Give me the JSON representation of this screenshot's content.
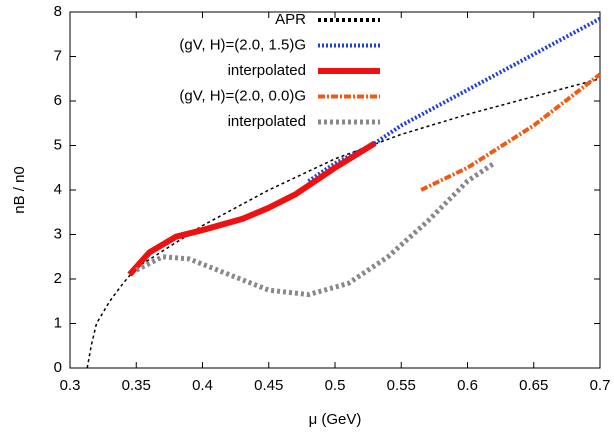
{
  "chart_data": {
    "type": "line",
    "xlabel": "μ (GeV)",
    "ylabel": "nB / n0",
    "xlim": [
      0.3,
      0.7
    ],
    "xticks": [
      0.3,
      0.35,
      0.4,
      0.45,
      0.5,
      0.55,
      0.6,
      0.65,
      0.7
    ],
    "ylim": [
      0,
      8
    ],
    "yticks": [
      0,
      1,
      2,
      3,
      4,
      5,
      6,
      7,
      8
    ],
    "legend": "top-right",
    "series": [
      {
        "name": "APR",
        "color": "#000000",
        "linestyle": "dashed",
        "x": [
          0.313,
          0.316,
          0.32,
          0.33,
          0.34,
          0.35,
          0.4,
          0.45,
          0.5,
          0.55,
          0.6,
          0.65,
          0.7
        ],
        "values": [
          0,
          0.5,
          1,
          1.5,
          1.9,
          2.25,
          3.2,
          4.0,
          4.7,
          5.25,
          5.7,
          6.1,
          6.5
        ]
      },
      {
        "name": "(gV, H)=(2.0, 1.5)G",
        "color": "#1f3fd6",
        "linestyle": "dotted",
        "x": [
          0.48,
          0.5,
          0.53,
          0.55,
          0.6,
          0.65,
          0.7
        ],
        "values": [
          4.2,
          4.6,
          5.05,
          5.45,
          6.25,
          7.05,
          7.85
        ]
      },
      {
        "name": "interpolated",
        "color": "#ee1111",
        "linestyle": "solid",
        "x": [
          0.345,
          0.36,
          0.38,
          0.4,
          0.43,
          0.45,
          0.47,
          0.5,
          0.53
        ],
        "values": [
          2.1,
          2.6,
          2.95,
          3.1,
          3.35,
          3.6,
          3.9,
          4.5,
          5.05
        ]
      },
      {
        "name": "(gV, H)=(2.0, 0.0)G",
        "color": "#f05a14",
        "linestyle": "dashdot",
        "x": [
          0.565,
          0.6,
          0.65,
          0.7
        ],
        "values": [
          4.0,
          4.5,
          5.45,
          6.6
        ]
      },
      {
        "name": "interpolated",
        "color": "#888888",
        "linestyle": "dotted-gray",
        "x": [
          0.35,
          0.37,
          0.39,
          0.42,
          0.45,
          0.48,
          0.51,
          0.54,
          0.57,
          0.6,
          0.62
        ],
        "values": [
          2.2,
          2.5,
          2.45,
          2.1,
          1.75,
          1.65,
          1.9,
          2.5,
          3.3,
          4.2,
          4.6
        ]
      }
    ]
  }
}
